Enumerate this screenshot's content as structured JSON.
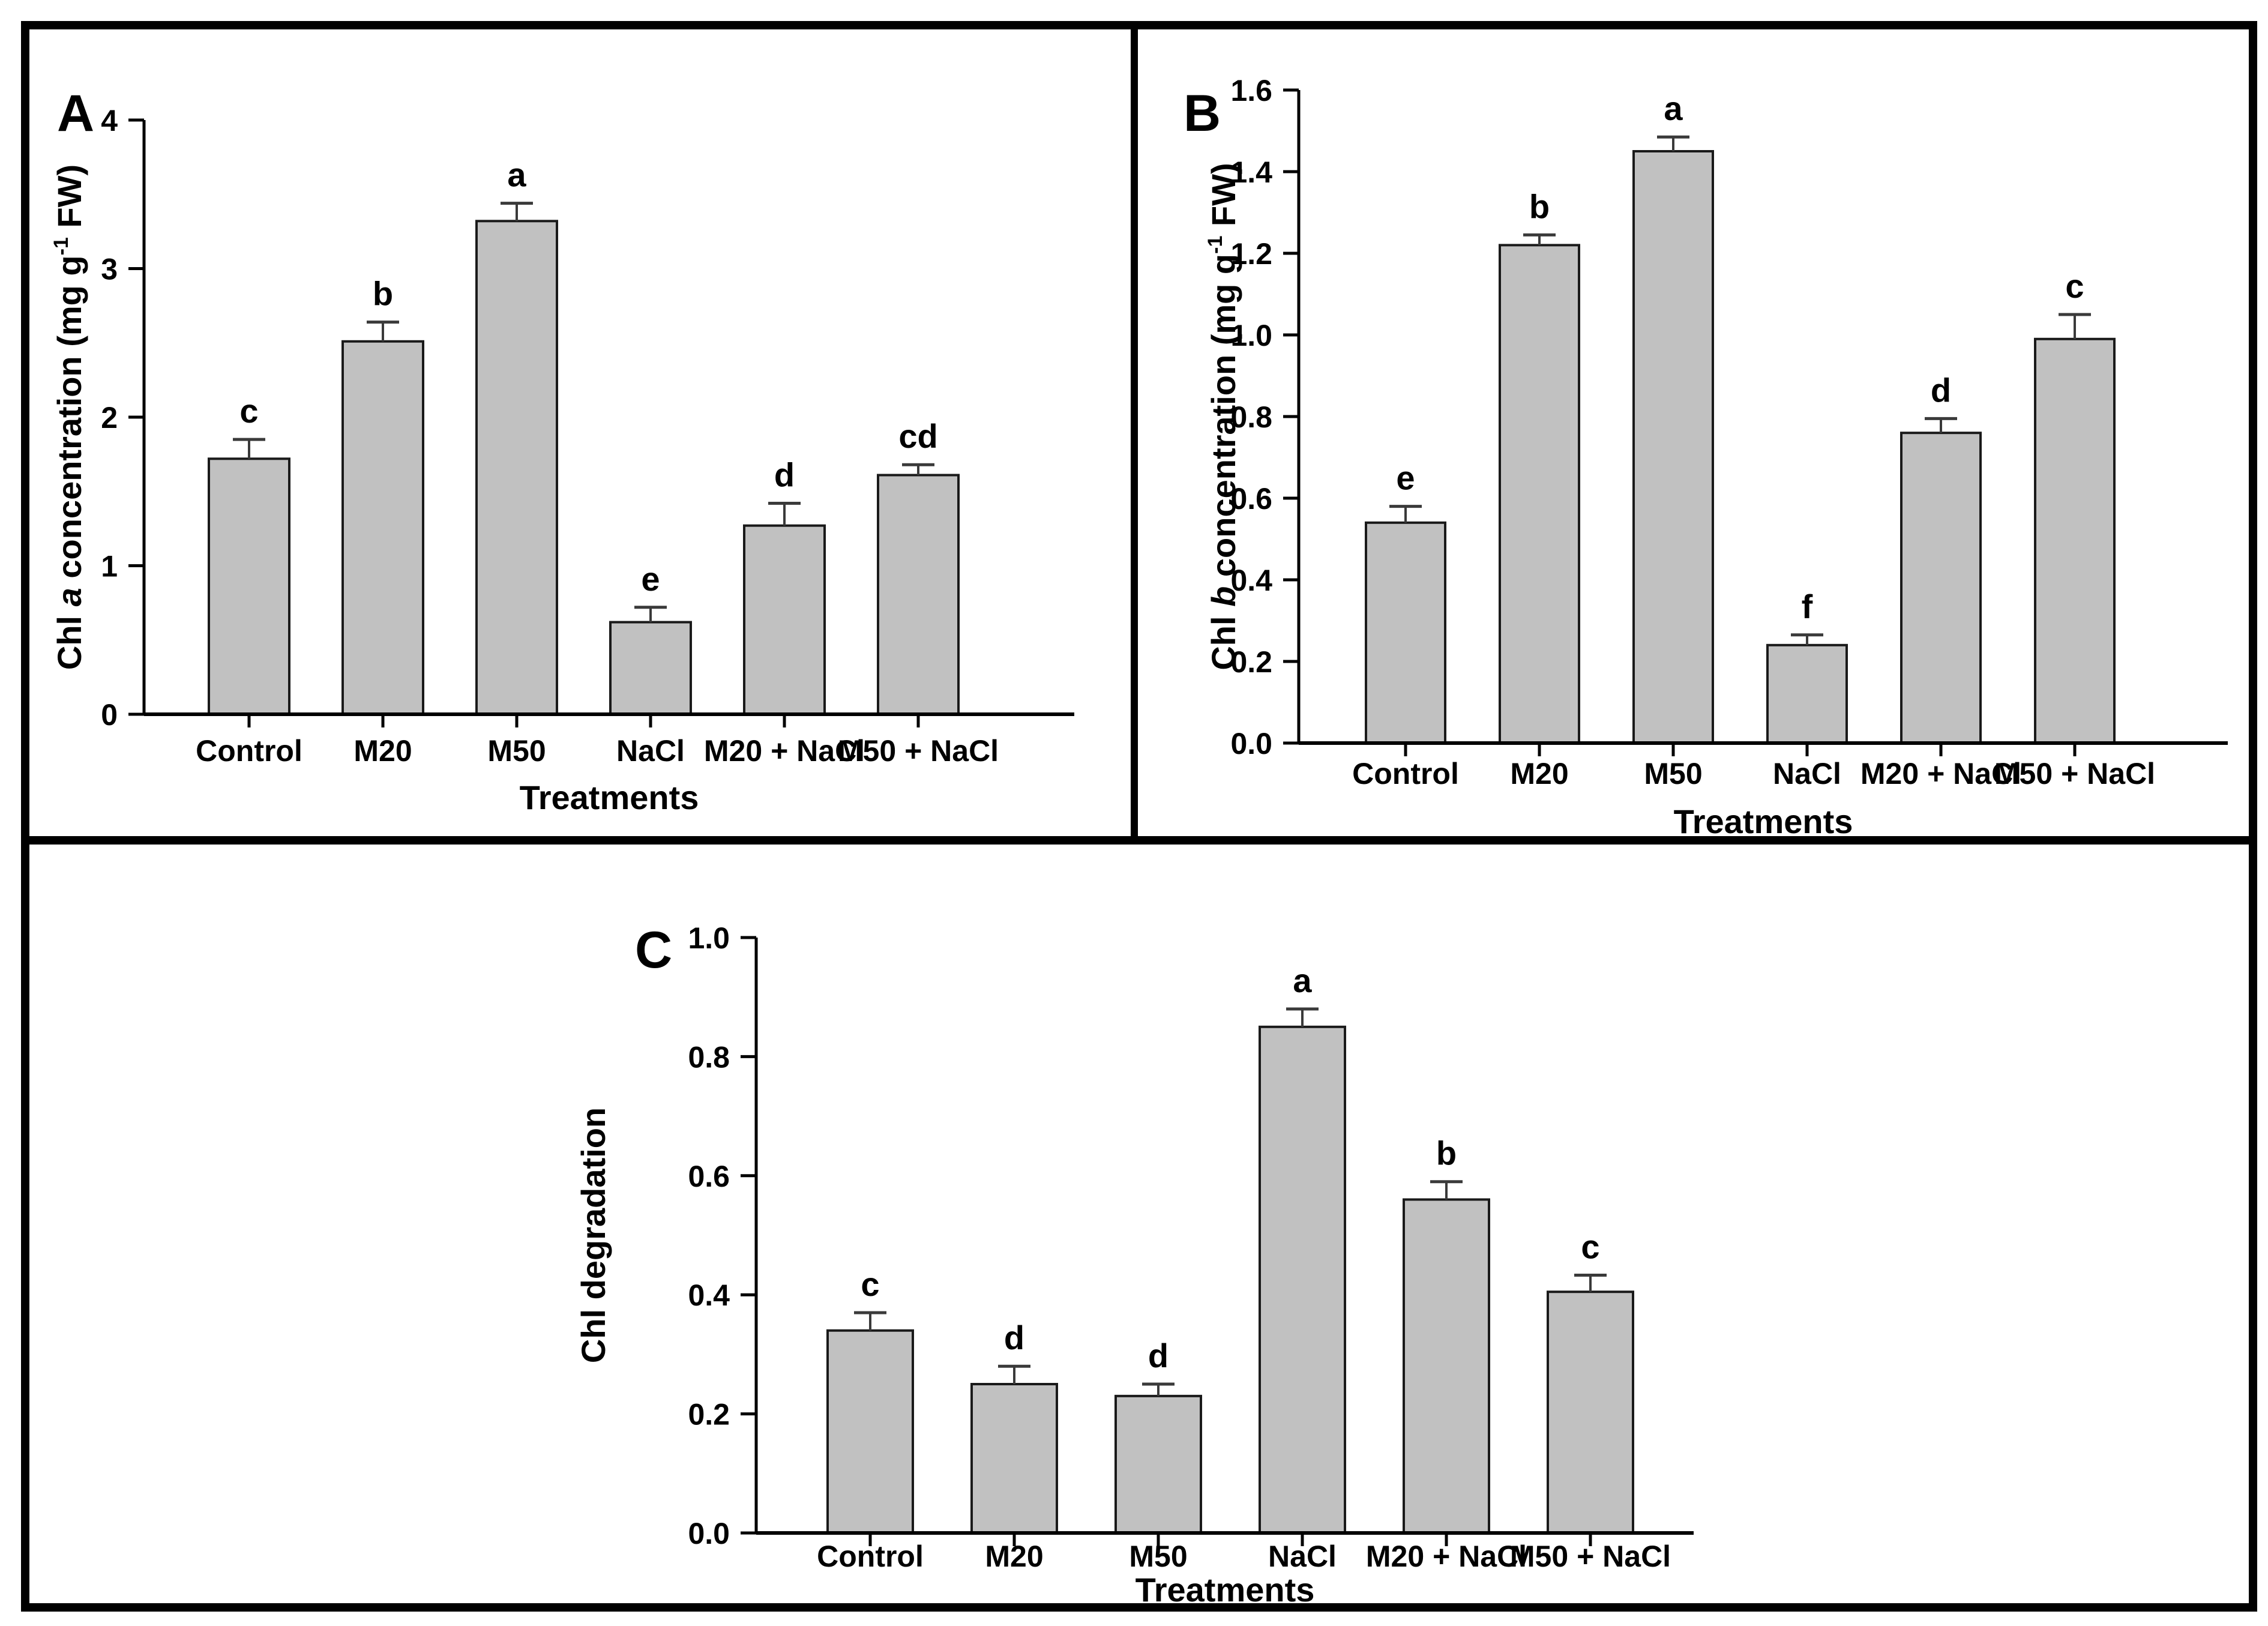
{
  "figure": {
    "background": "#ffffff",
    "border_color": "#000000",
    "bar_fill": "#c1c1c1",
    "bar_stroke": "#1a1a1a",
    "axis_color": "#000000",
    "error_bar_color": "#3a3a3a"
  },
  "chart_data": [
    {
      "type": "bar",
      "panel_label": "A",
      "title": "",
      "ylabel_plain": "Chl a concentration (mg g-1 FW)",
      "ylabel_parts": [
        {
          "text": "Chl "
        },
        {
          "text": "a",
          "italic": true
        },
        {
          "text": " concentration (mg g"
        },
        {
          "text": "-1",
          "sup": true
        },
        {
          "text": " FW)"
        }
      ],
      "xlabel": "Treatments",
      "categories": [
        "Control",
        "M20",
        "M50",
        "NaCl",
        "M20 + NaCl",
        "M50 + NaCl"
      ],
      "values": [
        1.72,
        2.51,
        3.32,
        0.62,
        1.27,
        1.61
      ],
      "errors": [
        0.13,
        0.13,
        0.12,
        0.1,
        0.15,
        0.07
      ],
      "sig_letters": [
        "c",
        "b",
        "a",
        "e",
        "d",
        "cd"
      ],
      "ylim": [
        0,
        4
      ],
      "ytick_step": 1,
      "ytick_decimals": 0,
      "grid": false,
      "legend": "none"
    },
    {
      "type": "bar",
      "panel_label": "B",
      "title": "",
      "ylabel_plain": "Chl b concentration (mg g-1 FW)",
      "ylabel_parts": [
        {
          "text": "Chl "
        },
        {
          "text": "b",
          "italic": true
        },
        {
          "text": " concentration (mg g"
        },
        {
          "text": "-1",
          "sup": true
        },
        {
          "text": " FW)"
        }
      ],
      "xlabel": "Treatments",
      "categories": [
        "Control",
        "M20",
        "M50",
        "NaCl",
        "M20 + NaCl",
        "M50 + NaCl"
      ],
      "values": [
        0.54,
        1.22,
        1.45,
        0.24,
        0.76,
        0.99
      ],
      "errors": [
        0.04,
        0.025,
        0.035,
        0.025,
        0.035,
        0.06
      ],
      "sig_letters": [
        "e",
        "b",
        "a",
        "f",
        "d",
        "c"
      ],
      "ylim": [
        0,
        1.6
      ],
      "ytick_step": 0.2,
      "ytick_decimals": 1,
      "grid": false,
      "legend": "none"
    },
    {
      "type": "bar",
      "panel_label": "C",
      "title": "",
      "ylabel_plain": "Chl degradation",
      "ylabel_parts": [
        {
          "text": "Chl degradation"
        }
      ],
      "xlabel": "Treatments",
      "categories": [
        "Control",
        "M20",
        "M50",
        "NaCl",
        "M20 + NaCl",
        "M50 + NaCl"
      ],
      "values": [
        0.34,
        0.25,
        0.23,
        0.85,
        0.56,
        0.405
      ],
      "errors": [
        0.03,
        0.03,
        0.02,
        0.03,
        0.03,
        0.028
      ],
      "sig_letters": [
        "c",
        "d",
        "d",
        "a",
        "b",
        "c"
      ],
      "ylim": [
        0,
        1.0
      ],
      "ytick_step": 0.2,
      "ytick_decimals": 1,
      "grid": false,
      "legend": "none"
    }
  ]
}
